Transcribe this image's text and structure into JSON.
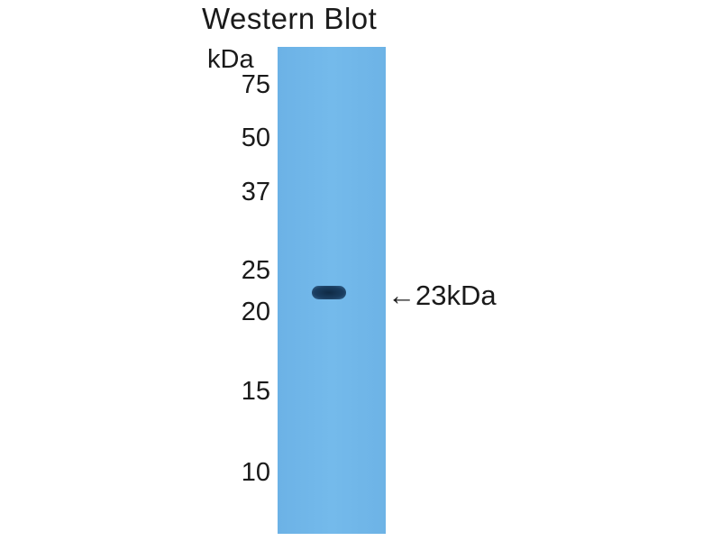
{
  "title": "Western Blot",
  "unit": "kDa",
  "markers": [
    "75",
    "50",
    "37",
    "25",
    "20",
    "15",
    "10"
  ],
  "band_annotation": "←23kDa",
  "band_kda": 23,
  "colors": {
    "membrane": "#6fb6e8",
    "band": "#15324f"
  }
}
